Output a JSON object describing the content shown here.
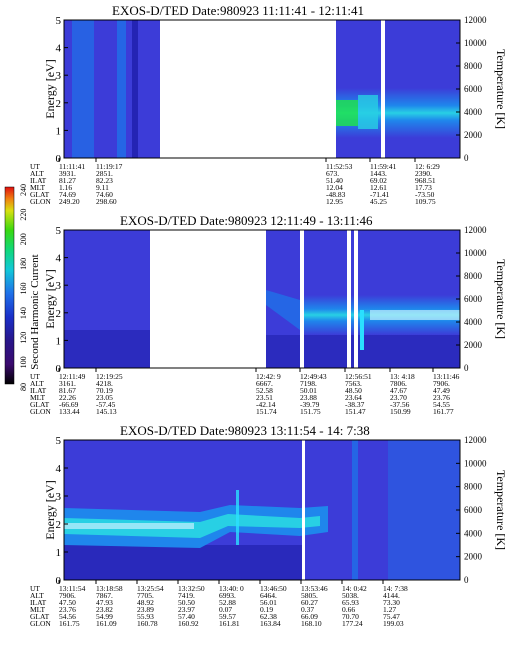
{
  "chart_data": [
    {
      "type": "heatmap",
      "title": "EXOS-D/TED  Date:980923  11:11:41 - 12:11:41",
      "ylabel_left": "Energy [eV]",
      "ylabel_right": "Temperature [K]",
      "ylim_left": [
        0,
        5
      ],
      "ylim_right": [
        0,
        12000
      ],
      "y_ticks_left": [
        "0",
        "1",
        "2",
        "3",
        "4",
        "5"
      ],
      "y_ticks_right": [
        "0",
        "2000",
        "4000",
        "6000",
        "8000",
        "10000",
        "12000"
      ],
      "row_labels": [
        "UT",
        "ALT",
        "ILAT",
        "MLT",
        "GLAT",
        "GLON"
      ],
      "columns": [
        {
          "UT": "11:11:41",
          "ALT": "3931.",
          "ILAT": "81.27",
          "MLT": "1.16",
          "GLAT": "74.69",
          "GLON": "249.20"
        },
        {
          "UT": "11:19:17",
          "ALT": "2851.",
          "ILAT": "82.23",
          "MLT": "9.11",
          "GLAT": "74.60",
          "GLON": "298.60"
        },
        {
          "UT": "11:52:53",
          "ALT": "673.",
          "ILAT": "51.40",
          "MLT": "12.04",
          "GLAT": "-48.83",
          "GLON": "12.95"
        },
        {
          "UT": "11:59:41",
          "ALT": "1443.",
          "ILAT": "69.02",
          "MLT": "12.61",
          "GLAT": "-71.41",
          "GLON": "45.25"
        },
        {
          "UT": "12: 6:29",
          "ALT": "2390.",
          "ILAT": "968.51",
          "MLT": "17.73",
          "GLAT": "-73.50",
          "GLON": "109.75"
        }
      ]
    },
    {
      "type": "heatmap",
      "title": "EXOS-D/TED  Date:980923  12:11:49 - 13:11:46",
      "ylabel_left": "Energy [eV]",
      "ylabel_right": "Temperature [K]",
      "ylim_left": [
        0,
        5
      ],
      "ylim_right": [
        0,
        12000
      ],
      "y_ticks_left": [
        "0",
        "1",
        "2",
        "3",
        "4",
        "5"
      ],
      "y_ticks_right": [
        "0",
        "2000",
        "4000",
        "6000",
        "8000",
        "10000",
        "12000"
      ],
      "row_labels": [
        "UT",
        "ALT",
        "ILAT",
        "MLT",
        "GLAT",
        "GLON"
      ],
      "columns": [
        {
          "UT": "12:11:49",
          "ALT": "3161.",
          "ILAT": "81.67",
          "MLT": "22.26",
          "GLAT": "-66.69",
          "GLON": "133.44"
        },
        {
          "UT": "12:19:25",
          "ALT": "4218.",
          "ILAT": "70.19",
          "MLT": "23.05",
          "GLAT": "-57.45",
          "GLON": "145.13"
        },
        {
          "UT": "12:42: 9",
          "ALT": "6667.",
          "ILAT": "52.58",
          "MLT": "23.51",
          "GLAT": "-42.14",
          "GLON": "151.74"
        },
        {
          "UT": "12:49:43",
          "ALT": "7198.",
          "ILAT": "50.01",
          "MLT": "23.88",
          "GLAT": "-39.79",
          "GLON": "151.75"
        },
        {
          "UT": "12:56:51",
          "ALT": "7563.",
          "ILAT": "48.50",
          "MLT": "23.64",
          "GLAT": "-38.37",
          "GLON": "151.47"
        },
        {
          "UT": "13: 4:18",
          "ALT": "7806.",
          "ILAT": "47.67",
          "MLT": "23.70",
          "GLAT": "-37.56",
          "GLON": "150.99"
        },
        {
          "UT": "13:11:46",
          "ALT": "7906.",
          "ILAT": "47.49",
          "MLT": "23.76",
          "GLAT": "54.55",
          "GLON": "161.77"
        }
      ]
    },
    {
      "type": "heatmap",
      "title": "EXOS-D/TED  Date:980923  13:11:54 - 14: 7:38",
      "ylabel_left": "Energy [eV]",
      "ylabel_right": "Temperature [K]",
      "ylim_left": [
        0,
        5
      ],
      "ylim_right": [
        0,
        12000
      ],
      "y_ticks_left": [
        "0",
        "1",
        "2",
        "3",
        "4",
        "5"
      ],
      "y_ticks_right": [
        "0",
        "2000",
        "4000",
        "6000",
        "8000",
        "10000",
        "12000"
      ],
      "row_labels": [
        "UT",
        "ALT",
        "ILAT",
        "MLT",
        "GLAT",
        "GLON"
      ],
      "columns": [
        {
          "UT": "13:11:54",
          "ALT": "7906.",
          "ILAT": "47.50",
          "MLT": "23.76",
          "GLAT": "54.56",
          "GLON": "161.75"
        },
        {
          "UT": "13:18:58",
          "ALT": "7867.",
          "ILAT": "47.93",
          "MLT": "23.82",
          "GLAT": "54.99",
          "GLON": "161.09"
        },
        {
          "UT": "13:25:54",
          "ALT": "7705.",
          "ILAT": "48.92",
          "MLT": "23.89",
          "GLAT": "55.93",
          "GLON": "160.78"
        },
        {
          "UT": "13:32:50",
          "ALT": "7419.",
          "ILAT": "50.50",
          "MLT": "23.97",
          "GLAT": "57.40",
          "GLON": "160.92"
        },
        {
          "UT": "13:40: 0",
          "ALT": "6993.",
          "ILAT": "52.88",
          "MLT": "0.07",
          "GLAT": "59.57",
          "GLON": "161.81"
        },
        {
          "UT": "13:46:50",
          "ALT": "6464.",
          "ILAT": "56.01",
          "MLT": "0.19",
          "GLAT": "62.38",
          "GLON": "163.84"
        },
        {
          "UT": "13:53:46",
          "ALT": "5805.",
          "ILAT": "60.27",
          "MLT": "0.37",
          "GLAT": "66.09",
          "GLON": "168.10"
        },
        {
          "UT": "14: 0:42",
          "ALT": "5038.",
          "ILAT": "65.93",
          "MLT": "0.66",
          "GLAT": "70.70",
          "GLON": "177.24"
        },
        {
          "UT": "14: 7:38",
          "ALT": "4144.",
          "ILAT": "73.30",
          "MLT": "1.27",
          "GLAT": "75.47",
          "GLON": "199.03"
        }
      ]
    }
  ],
  "colorbar": {
    "label": "Second Harmonic Current",
    "ticks": [
      "80",
      "100",
      "120",
      "140",
      "160",
      "180",
      "200",
      "220",
      "240"
    ],
    "colors": [
      "#000000",
      "#3a0a6e",
      "#28168a",
      "#1a2fc8",
      "#1f70e8",
      "#12c8d8",
      "#10d87a",
      "#38d810",
      "#d8e010",
      "#f08010",
      "#e01010"
    ]
  },
  "plot_colors": {
    "background_fill": "#3c3cd8",
    "low_fill": "#2424b4",
    "band_outer": "#1f86ec",
    "band_inner": "#28d0e4",
    "band_core": "#c4f0ff",
    "spike": "#2ae0ff",
    "green_patch": "#20e050"
  }
}
